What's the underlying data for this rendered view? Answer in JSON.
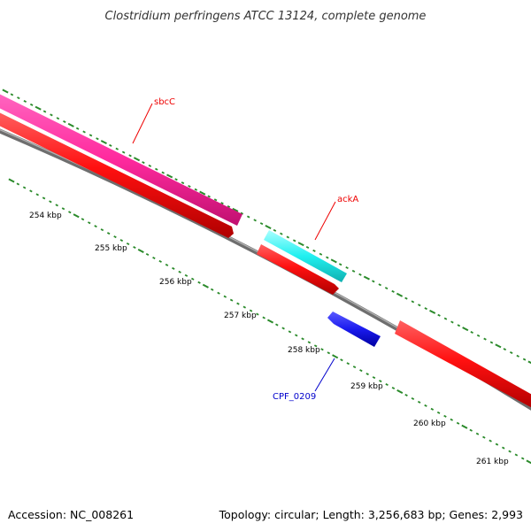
{
  "title": "Clostridium perfringens ATCC 13124, complete genome",
  "footer": {
    "accession": "Accession: NC_008261",
    "summary": "Topology: circular; Length: 3,256,683 bp; Genes: 2,993"
  },
  "kbp_labels": [
    "254 kbp",
    "255 kbp",
    "256 kbp",
    "257 kbp",
    "258 kbp",
    "259 kbp",
    "260 kbp",
    "261 kbp"
  ],
  "genes": [
    {
      "name": "sbcC",
      "color": "#ee0000"
    },
    {
      "name": "ackA",
      "color": "#ee0000"
    },
    {
      "name": "CPF_0209",
      "color": "#0000cc"
    }
  ],
  "colors": {
    "pink_feature": "#ff2a9e",
    "red_feature": "#ff1a1a",
    "cyan_feature": "#1af0f0",
    "blue_feature": "#1a1aee",
    "backbone": "#808080",
    "tick": "#2a8a2a"
  }
}
